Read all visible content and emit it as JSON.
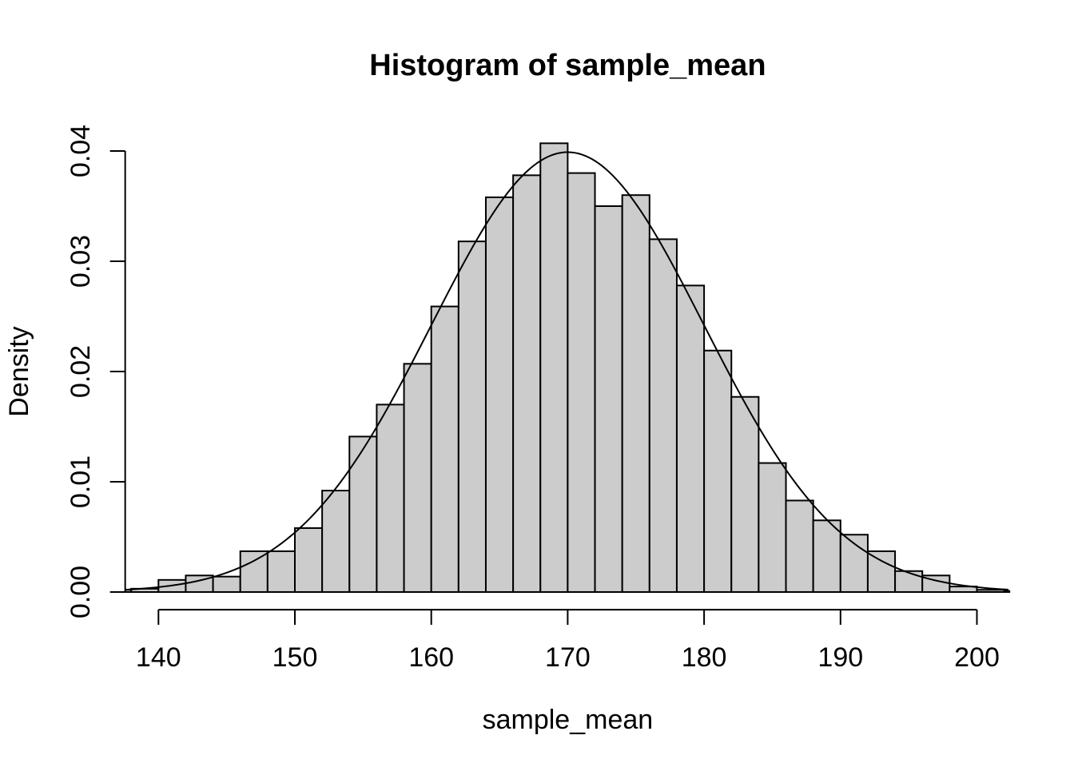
{
  "figure": {
    "title": "Histogram of sample_mean",
    "xlabel": "sample_mean",
    "ylabel": "Density"
  },
  "colors": {
    "background": "#ffffff",
    "bar_fill": "#cccccc",
    "bar_stroke": "#000000",
    "curve_stroke": "#000000",
    "axis_stroke": "#000000"
  },
  "chart_data": {
    "type": "bar",
    "subtype": "histogram-with-density-curve",
    "title": "Histogram of sample_mean",
    "xlabel": "sample_mean",
    "ylabel": "Density",
    "bin_width": 2,
    "breaks": [
      136,
      138,
      140,
      142,
      144,
      146,
      148,
      150,
      152,
      154,
      156,
      158,
      160,
      162,
      164,
      166,
      168,
      170,
      172,
      174,
      176,
      178,
      180,
      182,
      184,
      186,
      188,
      190,
      192,
      194,
      196,
      198,
      200,
      202,
      204
    ],
    "densities": [
      0.0002,
      0.0003,
      0.0011,
      0.0015,
      0.0014,
      0.0037,
      0.0037,
      0.0058,
      0.0092,
      0.0141,
      0.017,
      0.0207,
      0.0259,
      0.0318,
      0.0358,
      0.0378,
      0.0407,
      0.038,
      0.035,
      0.036,
      0.032,
      0.0278,
      0.0219,
      0.0177,
      0.0117,
      0.0083,
      0.0065,
      0.0052,
      0.0037,
      0.0019,
      0.0015,
      0.0005,
      0.0002,
      0.0001
    ],
    "x_ticks": [
      140,
      150,
      160,
      170,
      180,
      190,
      200
    ],
    "x_tick_labels": [
      "140",
      "150",
      "160",
      "170",
      "180",
      "190",
      "200"
    ],
    "y_ticks": [
      0,
      0.01,
      0.02,
      0.03,
      0.04
    ],
    "y_tick_labels": [
      "0.00",
      "0.01",
      "0.02",
      "0.03",
      "0.04"
    ],
    "xlim": [
      140,
      200
    ],
    "ylim": [
      0,
      0.04
    ],
    "plot_x_range": [
      137.56,
      202.44
    ],
    "plot_y_range": [
      -0.0016,
      0.0416
    ],
    "overlay_curve": {
      "type": "normal",
      "mean": 170,
      "sd": 10
    },
    "grid": false,
    "legend": null
  }
}
